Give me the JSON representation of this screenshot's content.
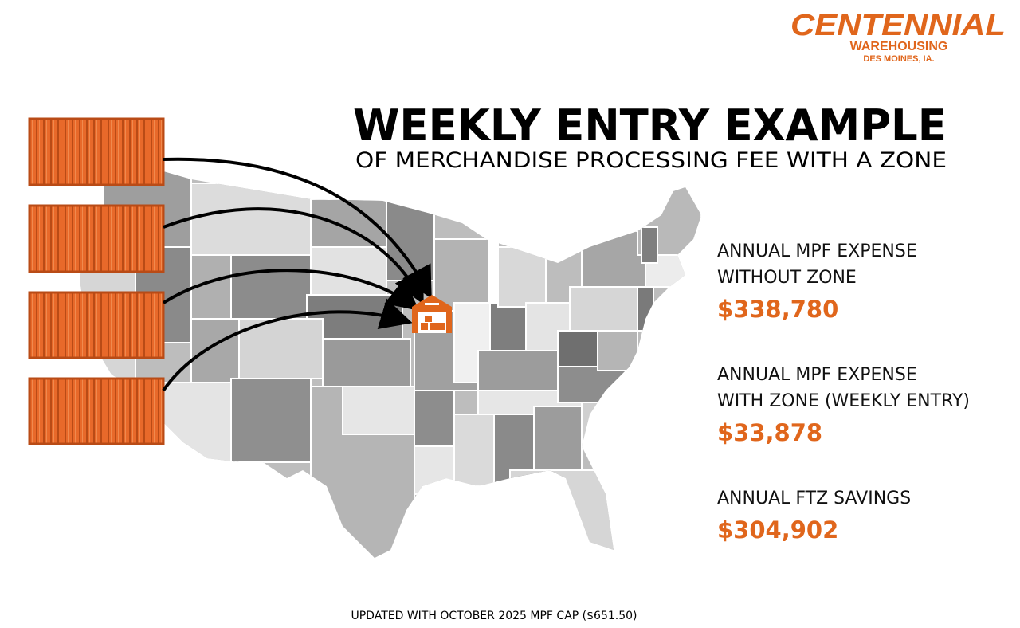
{
  "logo": {
    "name": "CENTENNIAL",
    "sub": "WAREHOUSING",
    "location": "DES MOINES, IA."
  },
  "header": {
    "title": "WEEKLY ENTRY EXAMPLE",
    "subtitle": "OF MERCHANDISE PROCESSING FEE WITH A ZONE"
  },
  "stats": [
    {
      "label_lines": [
        "ANNUAL MPF EXPENSE",
        "WITHOUT ZONE"
      ],
      "value": "$338,780"
    },
    {
      "label_lines": [
        "ANNUAL MPF EXPENSE",
        "WITH ZONE (WEEKLY ENTRY)"
      ],
      "value": "$33,878"
    },
    {
      "label_lines": [
        "ANNUAL FTZ SAVINGS"
      ],
      "value": "$304,902"
    }
  ],
  "footnote": "UPDATED WITH OCTOBER 2025 MPF CAP ($651.50)"
}
